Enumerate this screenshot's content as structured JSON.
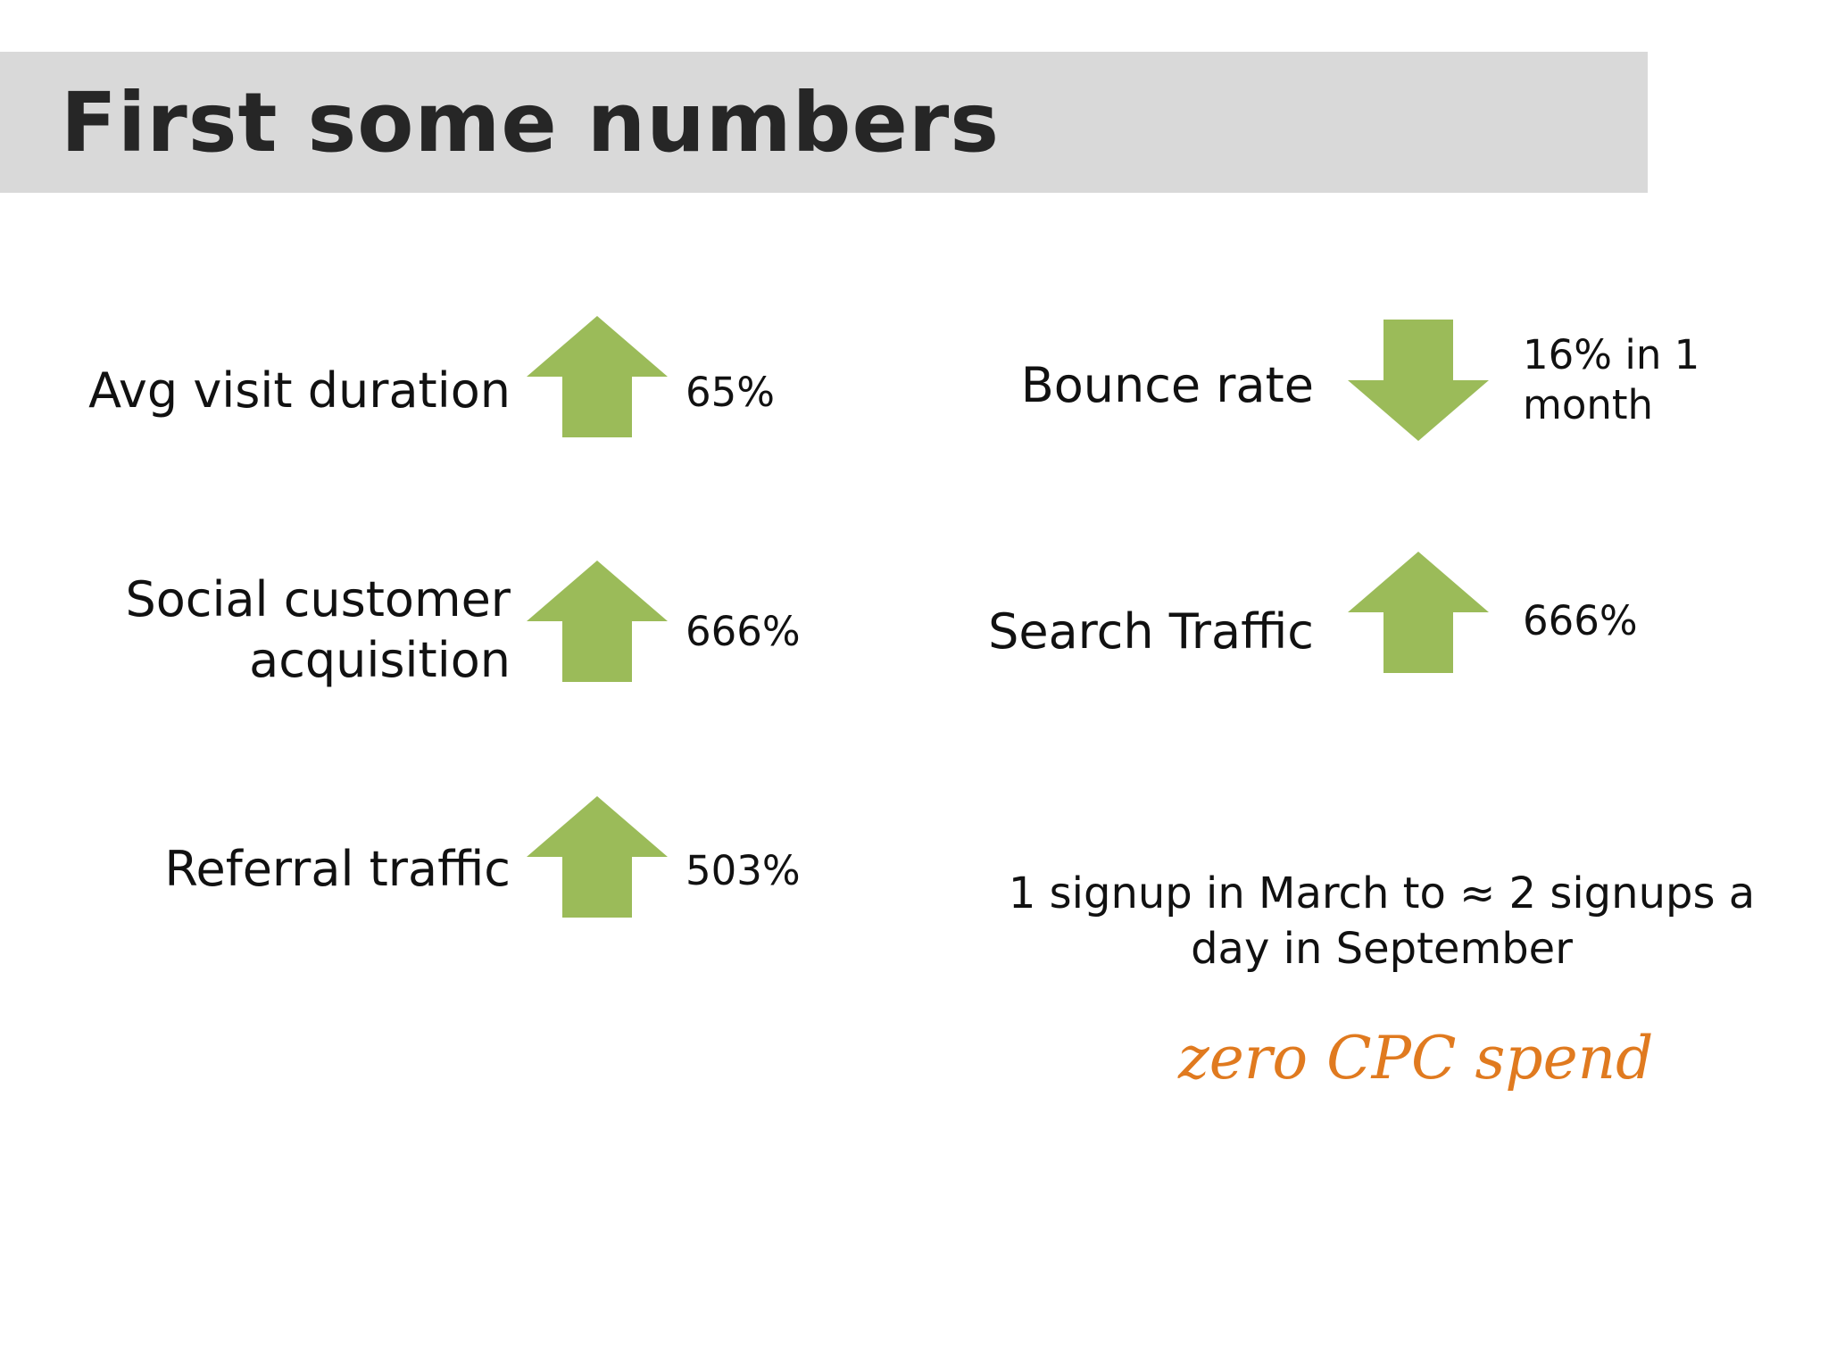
{
  "title": "First some numbers",
  "colors": {
    "arrow": "#9bbb59",
    "title_bar": "#d9d9d9",
    "accent_text": "#e07a1f"
  },
  "metrics": [
    {
      "label": "Avg visit duration",
      "direction": "up",
      "value": "65%"
    },
    {
      "label": "Social customer acquisition",
      "direction": "up",
      "value": "666%"
    },
    {
      "label": "Referral traffic",
      "direction": "up",
      "value": "503%"
    },
    {
      "label": "Bounce rate",
      "direction": "down",
      "value": "16% in 1 month"
    },
    {
      "label": "Search Traffic",
      "direction": "up",
      "value": "666%"
    }
  ],
  "signup_note": "1 signup in March to ≈ 2 signups a day in September",
  "cpc_note": "zero CPC spend"
}
